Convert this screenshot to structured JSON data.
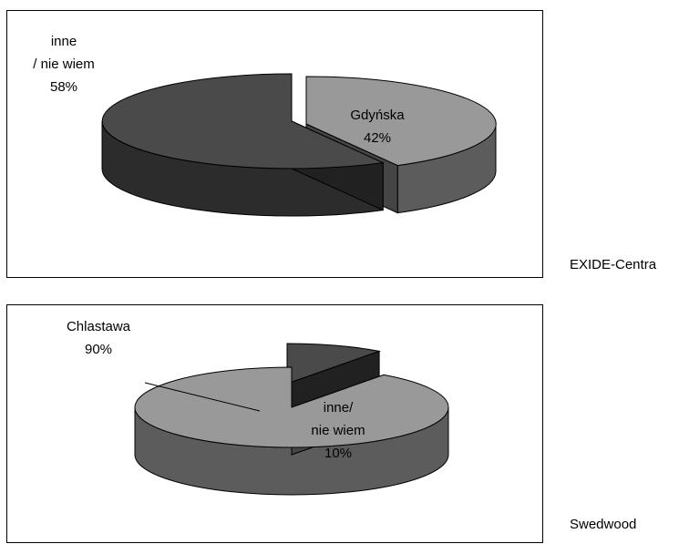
{
  "chart_data": [
    {
      "type": "pie",
      "style": "3d-exploded",
      "side_label": "EXIDE-Centra",
      "slices": [
        {
          "label_lines": [
            "Gdyńska",
            "42%"
          ],
          "value": 42,
          "color": "#999999"
        },
        {
          "label_lines": [
            "inne",
            "/ nie wiem",
            "58%"
          ],
          "value": 58,
          "color": "#4a4a4a"
        }
      ]
    },
    {
      "type": "pie",
      "style": "3d-exploded",
      "side_label": "Swedwood",
      "slices": [
        {
          "label_lines": [
            "inne/",
            "nie wiem",
            "10%"
          ],
          "value": 10,
          "color": "#4a4a4a"
        },
        {
          "label_lines": [
            "Chlastawa",
            "90%"
          ],
          "value": 90,
          "color": "#999999"
        }
      ]
    }
  ]
}
